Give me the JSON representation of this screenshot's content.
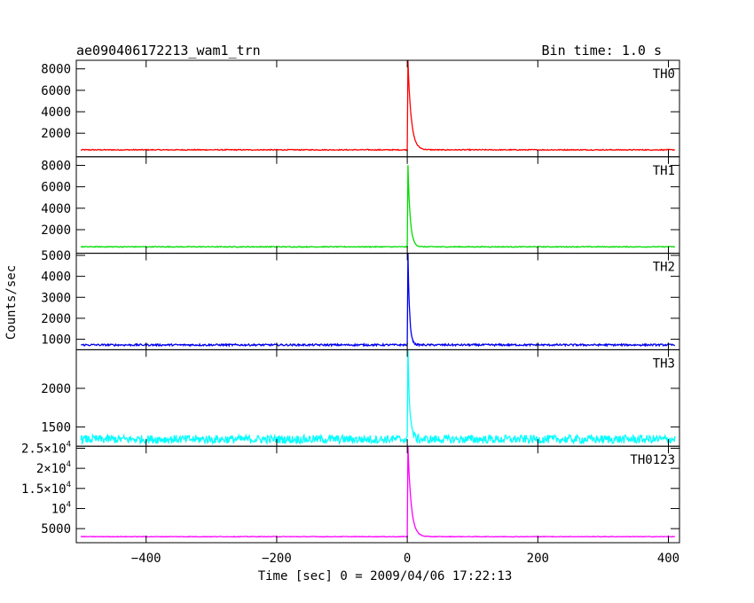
{
  "header": {
    "title": "ae090406172213_wam1_trn",
    "bin_time": "Bin time: 1.0 s"
  },
  "chart_data": {
    "type": "line",
    "xlabel": "Time [sec] 0 = 2009/04/06 17:22:13",
    "ylabel": "Counts/sec",
    "xlim": [
      -507,
      417
    ],
    "x_ticks": [
      -400,
      -200,
      0,
      200,
      400
    ],
    "x_tick_labels": [
      "−400",
      "−200",
      "0",
      "200",
      "400"
    ],
    "panels": [
      {
        "name": "TH0",
        "color": "#ff0000",
        "ylim": [
          -200,
          8800
        ],
        "yticks": [
          {
            "value": 2000,
            "mantissa": "2000",
            "exp": ""
          },
          {
            "value": 4000,
            "mantissa": "4000",
            "exp": ""
          },
          {
            "value": 6000,
            "mantissa": "6000",
            "exp": ""
          },
          {
            "value": 8000,
            "mantissa": "8000",
            "exp": ""
          }
        ],
        "series": {
          "baseline": 450,
          "noise": 45,
          "peak_time": 1,
          "peak": 8800,
          "decay_s": 5,
          "second_peak_time": 4,
          "second_peak": 3100
        }
      },
      {
        "name": "TH1",
        "color": "#00dd00",
        "ylim": [
          -200,
          8800
        ],
        "yticks": [
          {
            "value": 2000,
            "mantissa": "2000",
            "exp": ""
          },
          {
            "value": 4000,
            "mantissa": "4000",
            "exp": ""
          },
          {
            "value": 6000,
            "mantissa": "6000",
            "exp": ""
          },
          {
            "value": 8000,
            "mantissa": "8000",
            "exp": ""
          }
        ],
        "series": {
          "baseline": 400,
          "noise": 40,
          "peak_time": 1,
          "peak": 8000,
          "decay_s": 3.5,
          "second_peak_time": 3,
          "second_peak": 2500
        }
      },
      {
        "name": "TH2",
        "color": "#0000ee",
        "ylim": [
          500,
          5100
        ],
        "yticks": [
          {
            "value": 1000,
            "mantissa": "1000",
            "exp": ""
          },
          {
            "value": 2000,
            "mantissa": "2000",
            "exp": ""
          },
          {
            "value": 3000,
            "mantissa": "3000",
            "exp": ""
          },
          {
            "value": 4000,
            "mantissa": "4000",
            "exp": ""
          },
          {
            "value": 5000,
            "mantissa": "5000",
            "exp": ""
          }
        ],
        "series": {
          "baseline": 730,
          "noise": 45,
          "peak_time": 1,
          "peak": 5100,
          "decay_s": 2.5,
          "second_peak_time": 2,
          "second_peak": 3200
        }
      },
      {
        "name": "TH3",
        "color": "#00ffff",
        "ylim": [
          1250,
          2500
        ],
        "yticks": [
          {
            "value": 1500,
            "mantissa": "1500",
            "exp": ""
          },
          {
            "value": 2000,
            "mantissa": "2000",
            "exp": ""
          }
        ],
        "series": {
          "baseline": 1340,
          "noise": 55,
          "peak_time": 1,
          "peak": 2470,
          "decay_s": 3,
          "second_peak_time": 2,
          "second_peak": 1950
        }
      },
      {
        "name": "TH0123",
        "color": "#ff00ff",
        "ylim": [
          1500,
          25500
        ],
        "yticks": [
          {
            "value": 5000,
            "mantissa": "5000",
            "exp": ""
          },
          {
            "value": 10000,
            "mantissa": "10",
            "exp": "4"
          },
          {
            "value": 15000,
            "mantissa": "1.5×10",
            "exp": "4"
          },
          {
            "value": 20000,
            "mantissa": "2×10",
            "exp": "4"
          },
          {
            "value": 25000,
            "mantissa": "2.5×10",
            "exp": "4"
          }
        ],
        "series": {
          "baseline": 3000,
          "noise": 80,
          "peak_time": 1,
          "peak": 25500,
          "decay_s": 5,
          "second_peak_time": 3,
          "second_peak": 12000
        }
      }
    ]
  }
}
